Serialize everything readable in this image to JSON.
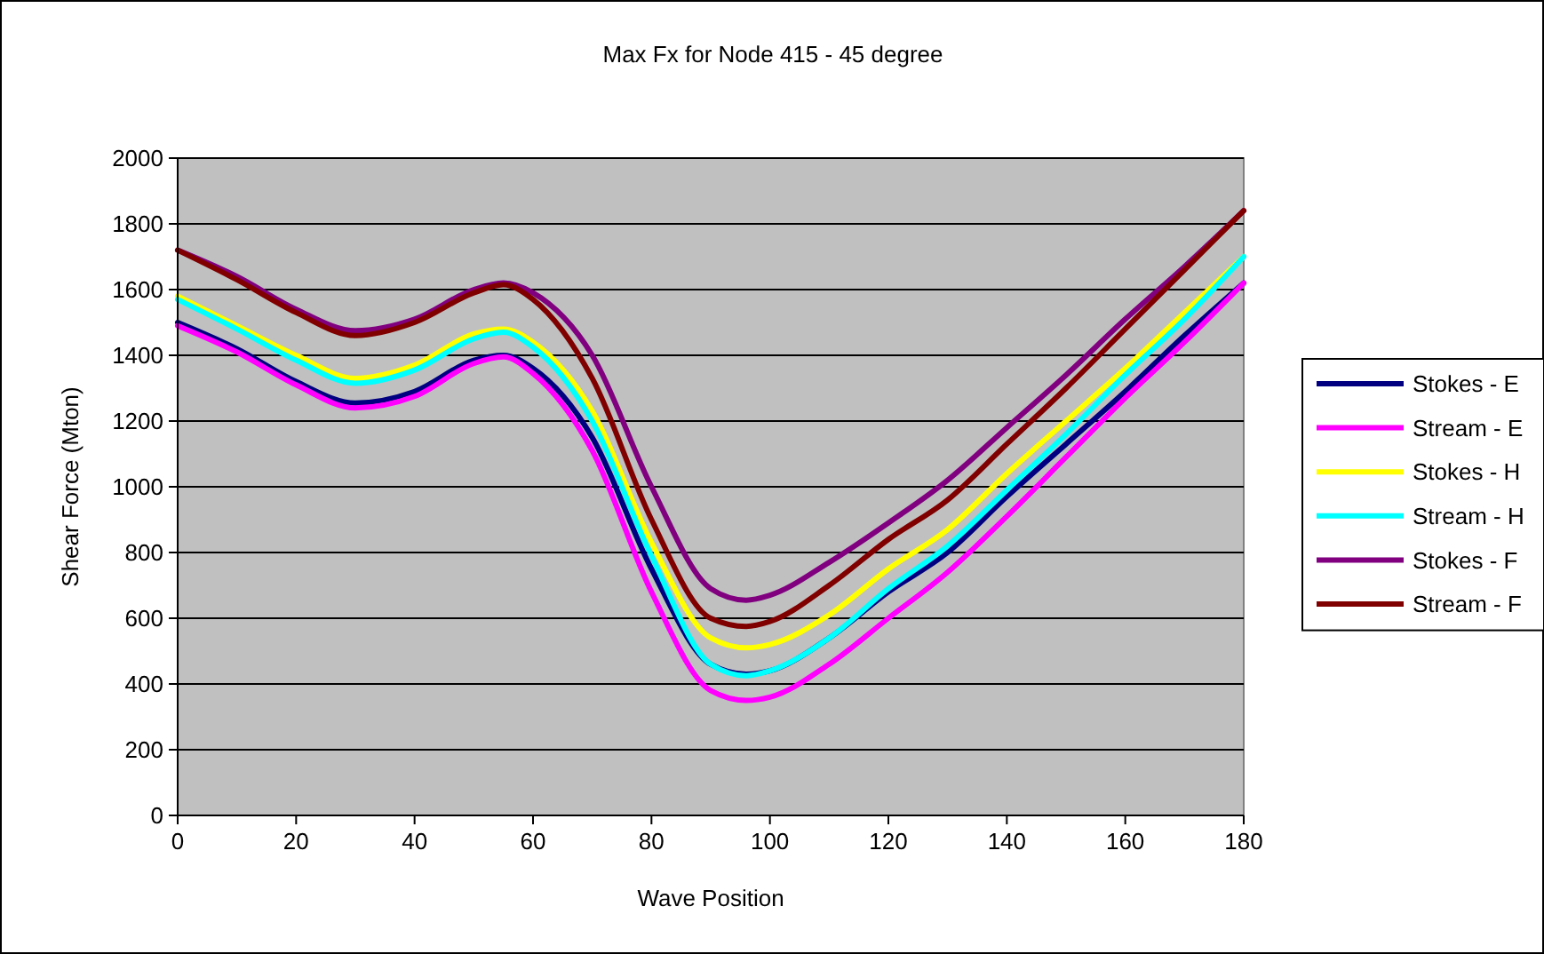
{
  "chart_data": {
    "type": "line",
    "title": "Max Fx for Node 415 - 45 degree",
    "xlabel": "Wave Position",
    "ylabel": "Shear Force (Mton)",
    "x": [
      0,
      10,
      20,
      30,
      40,
      50,
      55,
      60,
      70,
      80,
      90,
      96,
      100,
      110,
      120,
      130,
      140,
      150,
      160,
      170,
      180
    ],
    "series": [
      {
        "name": "Stokes - E",
        "color": "#000080",
        "values": [
          1500,
          1420,
          1320,
          1255,
          1290,
          1385,
          1400,
          1360,
          1150,
          750,
          460,
          430,
          440,
          540,
          680,
          800,
          970,
          1130,
          1290,
          1460,
          1620
        ]
      },
      {
        "name": "Stream - E",
        "color": "#ff00ff",
        "values": [
          1490,
          1410,
          1310,
          1240,
          1275,
          1375,
          1395,
          1345,
          1110,
          680,
          380,
          350,
          360,
          460,
          600,
          740,
          910,
          1090,
          1270,
          1440,
          1620
        ]
      },
      {
        "name": "Stokes - H",
        "color": "#ffff00",
        "values": [
          1580,
          1490,
          1400,
          1330,
          1370,
          1465,
          1480,
          1440,
          1230,
          830,
          540,
          510,
          520,
          610,
          750,
          870,
          1040,
          1200,
          1360,
          1530,
          1700
        ]
      },
      {
        "name": "Stream - H",
        "color": "#00ffff",
        "values": [
          1570,
          1480,
          1385,
          1315,
          1355,
          1450,
          1470,
          1425,
          1200,
          790,
          460,
          425,
          440,
          540,
          690,
          820,
          990,
          1160,
          1340,
          1510,
          1700
        ]
      },
      {
        "name": "Stokes - F",
        "color": "#800080",
        "values": [
          1720,
          1640,
          1540,
          1475,
          1510,
          1600,
          1620,
          1590,
          1400,
          1000,
          690,
          655,
          670,
          770,
          890,
          1020,
          1180,
          1340,
          1510,
          1670,
          1840
        ]
      },
      {
        "name": "Stream - F",
        "color": "#800000",
        "values": [
          1720,
          1630,
          1530,
          1460,
          1500,
          1590,
          1615,
          1570,
          1330,
          900,
          600,
          575,
          590,
          700,
          840,
          960,
          1130,
          1300,
          1480,
          1660,
          1840
        ]
      }
    ],
    "xlim": [
      0,
      180
    ],
    "xticks": [
      0,
      20,
      40,
      60,
      80,
      100,
      120,
      140,
      160,
      180
    ],
    "ylim": [
      0,
      2000
    ],
    "yticks": [
      0,
      200,
      400,
      600,
      800,
      1000,
      1200,
      1400,
      1600,
      1800,
      2000
    ],
    "grid": "y",
    "legend": "right",
    "marker": "none",
    "line_style": "solid"
  }
}
